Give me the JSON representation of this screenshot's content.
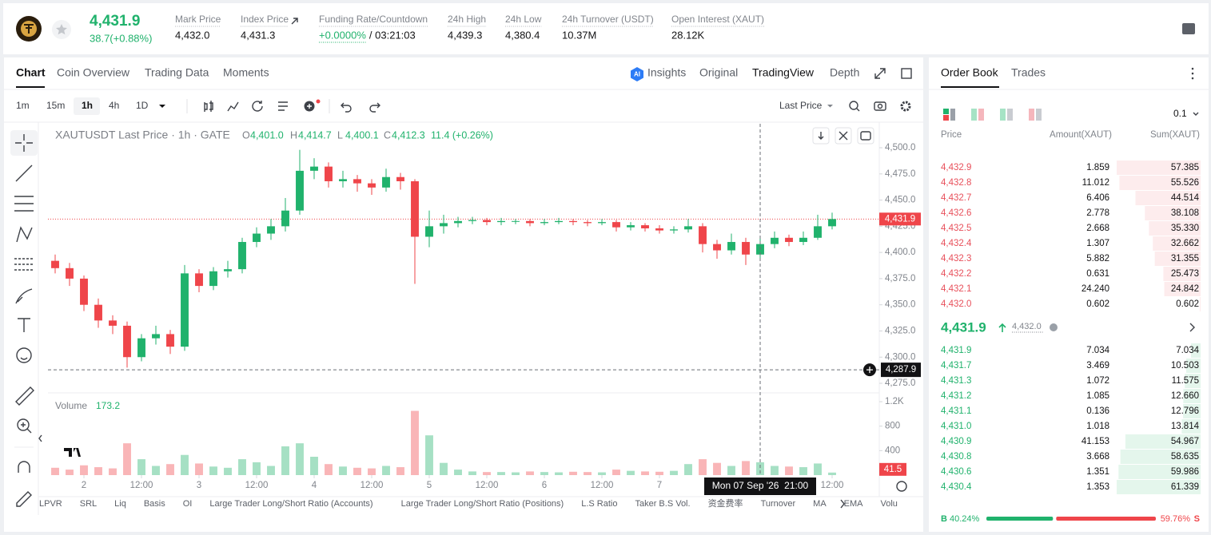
{
  "header": {
    "price": "4,431.9",
    "change": "38.7(+0.88%)",
    "stats": [
      {
        "label": "Mark Price",
        "value": "4,432.0"
      },
      {
        "label": "Index Price",
        "value": "4,431.3"
      },
      {
        "label": "Funding Rate/Countdown",
        "value": "+0.0000%",
        "extra": "/ 03:21:03"
      },
      {
        "label": "24h High",
        "value": "4,439.3"
      },
      {
        "label": "24h Low",
        "value": "4,380.4"
      },
      {
        "label": "24h Turnover (USDT)",
        "value": "10.37M"
      },
      {
        "label": "Open Interest (XAUT)",
        "value": "28.12K"
      }
    ]
  },
  "tabs": [
    "Chart",
    "Coin Overview",
    "Trading Data",
    "Moments"
  ],
  "view_tabs": [
    "Insights",
    "Original",
    "TradingView",
    "Depth"
  ],
  "intervals": [
    "1m",
    "15m",
    "1h",
    "4h",
    "1D"
  ],
  "price_type": "Last Price",
  "legend": {
    "title": "XAUTUSDT Last Price · 1h · GATE",
    "items": [
      {
        "key": "O",
        "value": "4,401.0"
      },
      {
        "key": "H",
        "value": "4,414.7"
      },
      {
        "key": "L",
        "value": "4,400.1"
      },
      {
        "key": "C",
        "value": "4,412.3"
      }
    ],
    "change": "11.4 (+0.26%)",
    "volume_label": "Volume",
    "volume_value": "173.2"
  },
  "chart_data": {
    "type": "candlestick",
    "x": [
      1.75,
      1.875,
      2,
      2.125,
      2.25,
      2.375,
      2.5,
      2.625,
      2.75,
      2.875,
      3,
      3.125,
      3.25,
      3.375,
      3.5,
      3.625,
      3.75,
      3.875,
      4,
      4.125,
      4.25,
      4.375,
      4.5,
      4.625,
      4.75,
      4.875,
      5,
      5.125,
      5.25,
      5.375,
      5.5,
      5.625,
      5.75,
      5.875,
      6,
      6.125,
      6.25,
      6.375,
      6.5,
      6.625,
      6.75,
      6.875,
      7,
      7.125,
      7.25,
      7.375,
      7.5,
      7.625,
      7.75,
      7.875,
      8,
      8.125,
      8.25,
      8.375,
      8.5
    ],
    "open": [
      4392,
      4385,
      4375,
      4350,
      4335,
      4330,
      4300,
      4318,
      4322,
      4310,
      4380,
      4368,
      4382,
      4384,
      4410,
      4418,
      4425,
      4440,
      4478,
      4482,
      4468,
      4470,
      4466,
      4462,
      4472,
      4468,
      4415,
      4425,
      4428,
      4430,
      4431,
      4429,
      4430,
      4430,
      4428,
      4429,
      4430,
      4429,
      4428,
      4429,
      4424,
      4426,
      4423,
      4421,
      4422,
      4425,
      4408,
      4402,
      4410,
      4398,
      4408,
      4414,
      4410,
      4414,
      4425
    ],
    "high": [
      4398,
      4390,
      4378,
      4356,
      4340,
      4334,
      4322,
      4330,
      4326,
      4388,
      4384,
      4386,
      4392,
      4414,
      4424,
      4432,
      4452,
      4498,
      4490,
      4486,
      4478,
      4474,
      4470,
      4480,
      4476,
      4470,
      4440,
      4436,
      4434,
      4434,
      4433,
      4433,
      4432,
      4432,
      4432,
      4433,
      4432,
      4431,
      4432,
      4431,
      4429,
      4428,
      4426,
      4425,
      4432,
      4428,
      4412,
      4418,
      4414,
      4416,
      4420,
      4417,
      4420,
      4436,
      4438
    ],
    "low": [
      4380,
      4368,
      4344,
      4328,
      4322,
      4290,
      4296,
      4312,
      4303,
      4306,
      4362,
      4364,
      4376,
      4380,
      4405,
      4412,
      4420,
      4436,
      4470,
      4462,
      4462,
      4458,
      4455,
      4458,
      4460,
      4370,
      4405,
      4418,
      4424,
      4427,
      4426,
      4426,
      4427,
      4425,
      4426,
      4427,
      4426,
      4425,
      4426,
      4420,
      4421,
      4420,
      4418,
      4418,
      4419,
      4400,
      4394,
      4398,
      4388,
      4394,
      4404,
      4406,
      4407,
      4412,
      4422
    ],
    "close": [
      4385,
      4375,
      4350,
      4335,
      4330,
      4300,
      4318,
      4322,
      4310,
      4380,
      4368,
      4382,
      4384,
      4410,
      4418,
      4425,
      4440,
      4478,
      4482,
      4468,
      4470,
      4466,
      4462,
      4472,
      4468,
      4415,
      4425,
      4428,
      4430,
      4431,
      4429,
      4430,
      4430,
      4428,
      4429,
      4430,
      4429,
      4428,
      4429,
      4424,
      4426,
      4423,
      4421,
      4422,
      4425,
      4408,
      4402,
      4410,
      4398,
      4408,
      4414,
      4410,
      4414,
      4425,
      4431.9
    ],
    "volume": [
      120,
      90,
      160,
      130,
      110,
      520,
      260,
      150,
      180,
      330,
      190,
      140,
      120,
      260,
      210,
      150,
      470,
      520,
      300,
      180,
      140,
      120,
      110,
      150,
      130,
      1050,
      650,
      200,
      90,
      60,
      50,
      50,
      45,
      60,
      50,
      45,
      55,
      50,
      45,
      90,
      70,
      60,
      55,
      70,
      180,
      260,
      200,
      150,
      230,
      210,
      150,
      140,
      130,
      190,
      41.5
    ],
    "up_color": "#20b26c",
    "down_color": "#ef454a",
    "xlim": [
      1.6875,
      8.9097
    ],
    "xticks": [
      2,
      {
        "value": 2.5,
        "label": "12:00"
      },
      3,
      {
        "value": 3.5,
        "label": "12:00"
      },
      4,
      {
        "value": 4.5,
        "label": "12:00"
      },
      5,
      {
        "value": 5.5,
        "label": "12:00"
      },
      6,
      {
        "value": 6.5,
        "label": "12:00"
      },
      7,
      {
        "value": 8.5,
        "label": "12:00"
      }
    ],
    "ylim": [
      4267.4,
      4522.9
    ],
    "yticks": [
      {
        "value": 4275,
        "label": "4,275.0"
      },
      {
        "value": 4300,
        "label": "4,300.0"
      },
      {
        "value": 4325,
        "label": "4,325.0"
      },
      {
        "value": 4350,
        "label": "4,350.0"
      },
      {
        "value": 4375,
        "label": "4,375.0"
      },
      {
        "value": 4400,
        "label": "4,400.0"
      },
      {
        "value": 4425,
        "label": "4,425.0"
      },
      {
        "value": 4450,
        "label": "4,450.0"
      },
      {
        "value": 4475,
        "label": "4,475.0"
      },
      {
        "value": 4500,
        "label": "4,500.0"
      }
    ],
    "volume_ylim": [
      0,
      1305
    ],
    "volume_yticks": [
      400,
      800,
      {
        "value": 1200,
        "label": "1.2K"
      }
    ],
    "last_price": {
      "value": 4431.9,
      "label": "4,431.9"
    },
    "last_volume": 41.5,
    "crosshair": {
      "price": {
        "value": 4287.9,
        "label": "4,287.9"
      },
      "time": {
        "value": 7.875,
        "label": "Mon 07 Sep '26  21:00"
      }
    }
  },
  "indicators": [
    "LPVR",
    "SRL",
    "Liq",
    "Basis",
    "OI",
    "Large Trader Long/Short Ratio (Accounts)",
    "Large Trader Long/Short Ratio (Positions)",
    "L.S Ratio",
    "Taker B.S Vol.",
    "资金费率",
    "Turnover",
    "MA",
    "EMA",
    "Volu"
  ],
  "order_book": {
    "tabs": [
      "Order Book",
      "Trades"
    ],
    "precision": "0.1",
    "columns": [
      "Price",
      "Amount(XAUT)",
      "Sum(XAUT)"
    ],
    "asks": {
      "prices": [
        "4,432.9",
        "4,432.8",
        "4,432.7",
        "4,432.6",
        "4,432.5",
        "4,432.4",
        "4,432.3",
        "4,432.2",
        "4,432.1",
        "4,432.0"
      ],
      "amounts": [
        "1.859",
        "11.012",
        "6.406",
        "2.778",
        "2.668",
        "1.307",
        "5.882",
        "0.631",
        "24.240",
        "0.602"
      ],
      "sums": [
        57.385,
        55.526,
        44.514,
        38.108,
        35.33,
        32.662,
        31.355,
        25.473,
        24.842,
        0.602
      ],
      "sum_labels": [
        "57.385",
        "55.526",
        "44.514",
        "38.108",
        "35.330",
        "32.662",
        "31.355",
        "25.473",
        "24.842",
        "0.602"
      ]
    },
    "mid": {
      "price": "4,431.9",
      "mark": "4,432.0"
    },
    "bids": {
      "prices": [
        "4,431.9",
        "4,431.7",
        "4,431.3",
        "4,431.2",
        "4,431.1",
        "4,431.0",
        "4,430.9",
        "4,430.8",
        "4,430.6",
        "4,430.4"
      ],
      "amounts": [
        "7.034",
        "3.469",
        "1.072",
        "1.085",
        "0.136",
        "1.018",
        "41.153",
        "3.668",
        "1.351",
        "1.353"
      ],
      "sums": [
        7.034,
        10.503,
        11.575,
        12.66,
        12.796,
        13.814,
        54.967,
        58.635,
        59.986,
        61.339
      ],
      "sum_labels": [
        "7.034",
        "10.503",
        "11.575",
        "12.660",
        "12.796",
        "13.814",
        "54.967",
        "58.635",
        "59.986",
        "61.339"
      ]
    },
    "ratio": {
      "sides": [
        "B",
        "S"
      ],
      "values": [
        40.24,
        59.76
      ],
      "value_labels": [
        "40.24%",
        "59.76%"
      ]
    }
  }
}
